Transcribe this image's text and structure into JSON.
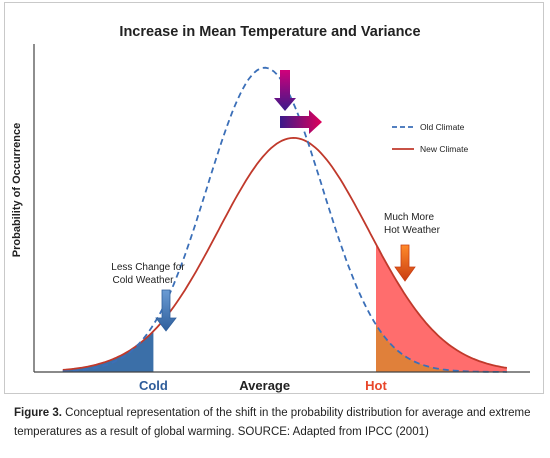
{
  "chart_data": {
    "type": "line",
    "title": "Increase in Mean Temperature and Variance",
    "xlabel": "",
    "ylabel": "Probability of Occurrence",
    "grid": false,
    "legend_position": "top-right",
    "x_tick_labels": [
      {
        "x": -1.93,
        "label": "Cold",
        "color": "#2e5c9a"
      },
      {
        "x": 0.0,
        "label": "Average",
        "color": "#222222"
      },
      {
        "x": 1.93,
        "label": "Hot",
        "color": "#e8462a"
      }
    ],
    "xlim": [
      -4.0,
      4.6
    ],
    "ylim": [
      0,
      0.43
    ],
    "series": [
      {
        "name": "Old Climate",
        "style": "dashed",
        "color": "#3b6fb8",
        "mean": 0.0,
        "sd": 1.0
      },
      {
        "name": "New Climate",
        "style": "solid",
        "color": "#c0392b",
        "mean": 0.5,
        "sd": 1.3
      }
    ],
    "shaded_regions": [
      {
        "name": "cold-tail",
        "x_max": -1.93,
        "color": "#3b6fa8"
      },
      {
        "name": "hot-tail",
        "x_min": 1.93,
        "color": "#ff6d6d"
      },
      {
        "name": "hot-overlap",
        "x_min": 1.93,
        "color": "#e0803a"
      }
    ],
    "annotations": [
      {
        "text_lines": [
          "Less Change for",
          "Cold Weather"
        ],
        "arrow_color": "#4a7ab8"
      },
      {
        "text_lines": [
          "Much More",
          "Hot Weather"
        ],
        "arrow_color": "#d9541e"
      }
    ],
    "shift_arrows": [
      {
        "direction": "down",
        "colors": [
          "#d1007a",
          "#3a1a8a"
        ]
      },
      {
        "direction": "right",
        "colors": [
          "#3a1a8a",
          "#e0005a"
        ]
      }
    ]
  },
  "caption": {
    "label": "Figure 3.",
    "text": "Conceptual representation of the shift in the probability distribution for average and extreme temperatures as a result of global warming. SOURCE: Adapted from IPCC (2001)"
  }
}
